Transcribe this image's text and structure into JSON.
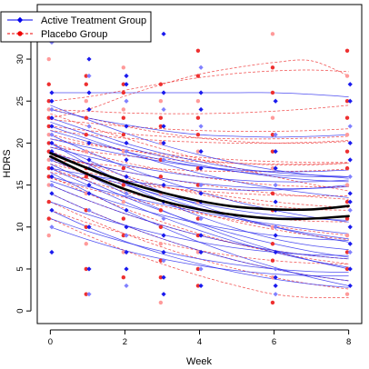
{
  "chart_data": {
    "type": "line",
    "title": "",
    "xlabel": "Week",
    "ylabel": "HDRS",
    "x_ticks": [
      0,
      2,
      4,
      6,
      8
    ],
    "y_ticks": [
      0,
      5,
      10,
      15,
      20,
      25,
      30,
      35
    ],
    "xlim": [
      -0.35,
      8.35
    ],
    "ylim": [
      -1.5,
      36.5
    ],
    "legend": {
      "placement": "top-left",
      "entries": [
        {
          "label": "Active Treatment Group",
          "color": "#0000ee",
          "line": "solid",
          "marker": "diamond"
        },
        {
          "label": "Placebo Group",
          "color": "#ee0000",
          "line": "dashed",
          "marker": "circle"
        }
      ]
    },
    "groups": [
      {
        "name": "Active Treatment Group",
        "color": "#2222ee",
        "mean_curve": {
          "x": [
            0,
            1,
            2,
            3,
            4,
            5,
            6,
            7,
            8
          ],
          "y": [
            18.4,
            16.3,
            14.5,
            13.1,
            12.1,
            11.4,
            11.0,
            11.0,
            11.3
          ]
        },
        "subject_curves": [
          [
            26,
            26,
            26,
            26,
            26,
            26,
            26,
            25.8,
            25.5
          ],
          [
            24,
            23,
            22.2,
            21.5,
            21,
            20.8,
            20.7,
            20.8,
            21
          ],
          [
            23,
            21.5,
            20,
            18.8,
            17.8,
            17,
            16.5,
            16.2,
            16
          ],
          [
            22,
            20.5,
            19,
            17.6,
            16.4,
            15.4,
            14.6,
            14,
            13.5
          ],
          [
            21,
            19,
            17.2,
            15.6,
            14.2,
            13,
            12,
            11.2,
            10.6
          ],
          [
            20,
            18,
            16,
            14.2,
            12.6,
            11.2,
            10,
            9,
            8.2
          ],
          [
            20,
            17.5,
            15.2,
            13.1,
            11.3,
            9.8,
            8.6,
            7.8,
            7.3
          ],
          [
            19,
            17,
            15.2,
            13.6,
            12.2,
            11,
            10,
            9.2,
            8.6
          ],
          [
            18.5,
            16.2,
            14,
            12,
            10.2,
            8.6,
            7.2,
            6,
            5
          ],
          [
            18,
            16.4,
            15,
            13.8,
            12.8,
            12,
            11.4,
            11,
            10.8
          ],
          [
            17.5,
            15.5,
            13.6,
            11.9,
            10.4,
            9.1,
            8,
            7.1,
            6.4
          ],
          [
            17,
            15,
            13,
            11.2,
            9.6,
            8.2,
            7,
            6,
            5.2
          ],
          [
            16.5,
            14.2,
            12,
            10,
            8.2,
            6.6,
            5.2,
            4,
            3
          ],
          [
            16,
            14.8,
            13.7,
            12.7,
            11.8,
            11,
            10.3,
            9.7,
            9.2
          ],
          [
            15,
            13.2,
            11.6,
            10.2,
            9,
            8,
            7.2,
            6.6,
            6.2
          ],
          [
            14,
            12,
            10.2,
            8.6,
            7.2,
            6,
            5,
            4.2,
            3.6
          ],
          [
            13,
            11.5,
            10.2,
            9.1,
            8.2,
            7.5,
            7,
            6.7,
            6.6
          ],
          [
            12,
            10,
            8.3,
            6.8,
            5.6,
            4.6,
            3.8,
            3.2,
            2.8
          ],
          [
            11,
            9.5,
            8.2,
            7.1,
            6.2,
            5.5,
            5,
            4.7,
            4.6
          ],
          [
            10,
            8.5,
            7.2,
            6.2,
            5.4,
            4.8,
            4.4,
            4.2,
            4.2
          ],
          [
            22.5,
            21,
            19.6,
            18.4,
            17.4,
            16.6,
            16,
            15.6,
            15.4
          ],
          [
            21.5,
            20.2,
            19,
            18,
            17.2,
            16.6,
            16.2,
            16,
            16
          ],
          [
            19.5,
            18.4,
            17.4,
            16.6,
            16,
            15.6,
            15.4,
            15.4,
            15.6
          ],
          [
            24.5,
            22.8,
            21.2,
            19.8,
            18.6,
            17.6,
            16.8,
            16.2,
            15.8
          ],
          [
            17,
            16.2,
            15.5,
            15,
            14.6,
            14.4,
            14.4,
            14.6,
            15
          ],
          [
            20.5,
            19.5,
            18.6,
            17.8,
            17.2,
            16.8,
            16.6,
            16.6,
            16.8
          ],
          [
            15.5,
            14,
            12.6,
            11.4,
            10.4,
            9.6,
            9,
            8.6,
            8.4
          ],
          [
            18.8,
            17.6,
            16.6,
            15.8,
            15.2,
            14.8,
            14.6,
            14.6,
            14.8
          ]
        ],
        "points": {
          "x": [
            0,
            0,
            0,
            0,
            0,
            0,
            0,
            0,
            0,
            0,
            0,
            0,
            0,
            0,
            0,
            0,
            0,
            1,
            1,
            1,
            1,
            1,
            1,
            1,
            1,
            1,
            1,
            1,
            1,
            1,
            1,
            2,
            2,
            2,
            2,
            2,
            2,
            2,
            2,
            2,
            2,
            2,
            2,
            2,
            2,
            2,
            3,
            3,
            3,
            3,
            3,
            3,
            3,
            3,
            3,
            3,
            3,
            3,
            3,
            3,
            4,
            4,
            4,
            4,
            4,
            4,
            4,
            4,
            4,
            4,
            4,
            4,
            4,
            4,
            6,
            6,
            6,
            6,
            6,
            6,
            6,
            6,
            6,
            6,
            6,
            6,
            6,
            6,
            8,
            8,
            8,
            8,
            8,
            8,
            8,
            8,
            8,
            8,
            8,
            8,
            8,
            8
          ],
          "y": [
            32,
            26,
            25,
            24,
            23,
            22,
            21,
            20,
            19,
            18,
            17,
            16,
            15,
            14,
            12,
            10,
            7,
            30,
            28,
            26,
            24,
            22,
            20,
            18,
            17,
            15,
            14,
            12,
            10,
            5,
            2,
            28,
            27,
            25,
            22,
            20,
            19,
            18,
            16,
            14,
            12,
            10,
            9,
            7,
            5,
            3,
            33,
            26,
            24,
            22,
            20,
            18,
            15,
            13,
            11,
            9,
            7,
            6,
            4,
            2,
            29,
            26,
            24,
            22,
            19,
            17,
            15,
            14,
            13,
            11,
            9,
            7,
            5,
            3,
            25,
            21,
            19,
            17,
            15,
            13,
            12,
            10,
            9,
            7,
            5,
            4,
            3,
            2,
            27,
            25,
            22,
            20,
            18,
            16,
            14,
            13,
            12,
            10,
            8,
            7,
            5,
            3
          ]
        }
      },
      {
        "name": "Placebo Group",
        "color": "#ee2222",
        "mean_curve": {
          "x": [
            0,
            1,
            2,
            3,
            4,
            5,
            6,
            7,
            8
          ],
          "y": [
            18.8,
            17.0,
            15.4,
            14.1,
            13.1,
            12.4,
            12.1,
            12.1,
            12.5
          ]
        },
        "subject_curves": [
          [
            25,
            25.5,
            26.3,
            27.1,
            27.8,
            28.3,
            28.6,
            28.7,
            28.5
          ],
          [
            23,
            24,
            25.6,
            27,
            28.2,
            29,
            29.6,
            29.8,
            28
          ],
          [
            24,
            23.8,
            23.6,
            23.5,
            23.5,
            23.6,
            23.8,
            24.1,
            24.5
          ],
          [
            22,
            21.5,
            21.1,
            20.8,
            20.6,
            20.5,
            20.5,
            20.6,
            20.8
          ],
          [
            21,
            20,
            19.2,
            18.5,
            18,
            17.6,
            17.4,
            17.4,
            17.6
          ],
          [
            20,
            18.8,
            17.7,
            16.8,
            16,
            15.4,
            15,
            14.8,
            14.8
          ],
          [
            19,
            17.5,
            16.1,
            14.9,
            13.9,
            13.1,
            12.5,
            12.1,
            12
          ],
          [
            18,
            16.2,
            14.5,
            13,
            11.7,
            10.6,
            9.7,
            9,
            8.5
          ],
          [
            17,
            15.5,
            14.2,
            13.1,
            12.2,
            11.5,
            11,
            10.7,
            10.6
          ],
          [
            16,
            14,
            12.2,
            10.6,
            9.2,
            8,
            7,
            6.2,
            5.6
          ],
          [
            15,
            13.2,
            11.6,
            10.2,
            9,
            8,
            7.2,
            6.6,
            6.2
          ],
          [
            14,
            12,
            10.2,
            8.6,
            7.2,
            6,
            5,
            4.2,
            3.6
          ],
          [
            13,
            11,
            9.2,
            7.6,
            6.2,
            5,
            4,
            3.2,
            2.6
          ],
          [
            12,
            10.5,
            9.2,
            8.1,
            7.2,
            6.5,
            6,
            5.7,
            5.6
          ],
          [
            11,
            9,
            7.2,
            5.6,
            4.2,
            3,
            2,
            1.6,
            1.6
          ],
          [
            24,
            23,
            22,
            21.2,
            20.6,
            20.2,
            20,
            20,
            20.2
          ],
          [
            21.5,
            21,
            20.6,
            20.3,
            20.1,
            20,
            20,
            20.1,
            20.3
          ],
          [
            20.5,
            19.8,
            19.2,
            18.7,
            18.3,
            18,
            17.8,
            17.7,
            17.7
          ],
          [
            19.5,
            19,
            18.5,
            18.1,
            17.8,
            17.6,
            17.5,
            17.5,
            17.6
          ],
          [
            18.5,
            17.5,
            16.6,
            15.8,
            15.1,
            14.5,
            14,
            13.6,
            13.3
          ],
          [
            17.5,
            16.5,
            15.6,
            14.8,
            14.1,
            13.5,
            13,
            12.6,
            12.3
          ],
          [
            16.5,
            15.8,
            15.2,
            14.7,
            14.3,
            14,
            13.8,
            13.7,
            13.7
          ],
          [
            22.8,
            22.4,
            22,
            21.7,
            21.5,
            21.4,
            21.4,
            21.5,
            21.7
          ],
          [
            15.8,
            14.6,
            13.5,
            12.5,
            11.6,
            10.8,
            10.1,
            9.5,
            9
          ],
          [
            23.5,
            22,
            20.6,
            19.3,
            18.1,
            17,
            16,
            15.1,
            14.3
          ],
          [
            18,
            17.6,
            17.2,
            16.9,
            16.7,
            16.6,
            16.6,
            16.7,
            16.9
          ]
        ],
        "points": {
          "x": [
            0,
            0,
            0,
            0,
            0,
            0,
            0,
            0,
            0,
            0,
            0,
            0,
            0,
            0,
            0,
            0,
            1,
            1,
            1,
            1,
            1,
            1,
            1,
            1,
            1,
            1,
            1,
            1,
            1,
            1,
            2,
            2,
            2,
            2,
            2,
            2,
            2,
            2,
            2,
            2,
            2,
            2,
            2,
            2,
            3,
            3,
            3,
            3,
            3,
            3,
            3,
            3,
            3,
            3,
            3,
            3,
            3,
            3,
            4,
            4,
            4,
            4,
            4,
            4,
            4,
            4,
            4,
            4,
            4,
            4,
            4,
            4,
            6,
            6,
            6,
            6,
            6,
            6,
            6,
            6,
            6,
            6,
            6,
            6,
            6,
            6,
            8,
            8,
            8,
            8,
            8,
            8,
            8,
            8,
            8,
            8,
            8,
            8,
            8,
            8
          ],
          "y": [
            30,
            27,
            25,
            24,
            23,
            22,
            21,
            20,
            19,
            18,
            17,
            16,
            15,
            13,
            11,
            9,
            28,
            27,
            25,
            23,
            21,
            19,
            17,
            16,
            14,
            12,
            10,
            8,
            5,
            2,
            29,
            27,
            26,
            24,
            23,
            21,
            19,
            17,
            15,
            13,
            11,
            9,
            7,
            4,
            27,
            25,
            23,
            22,
            20,
            18,
            16,
            14,
            12,
            10,
            8,
            6,
            4,
            1,
            31,
            28,
            25,
            23,
            21,
            19,
            17,
            15,
            13,
            11,
            9,
            7,
            5,
            3,
            33,
            29,
            26,
            23,
            21,
            19,
            17,
            14,
            12,
            10,
            8,
            6,
            4,
            1,
            31,
            28,
            25,
            23,
            21,
            19,
            17,
            15,
            13,
            11,
            9,
            7,
            5,
            2
          ]
        }
      }
    ]
  }
}
